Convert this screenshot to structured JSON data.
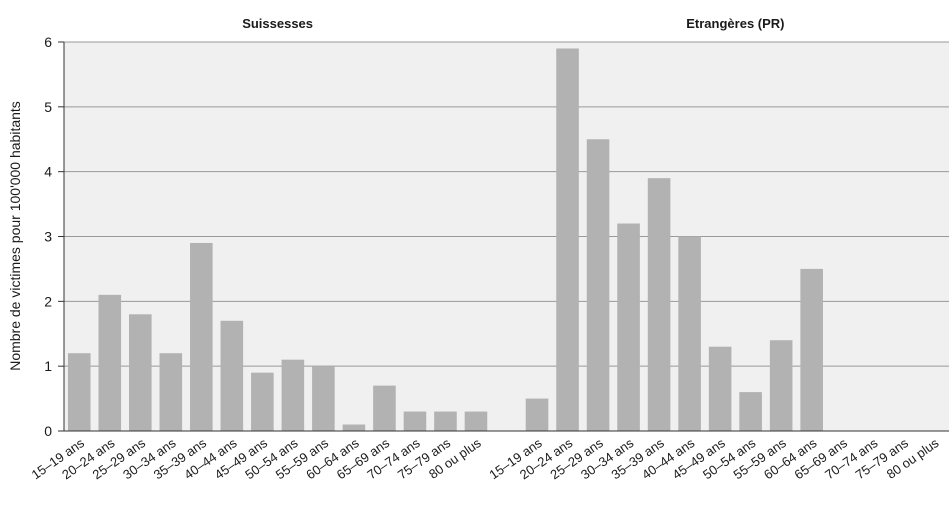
{
  "chart_data": {
    "type": "bar",
    "ylabel": "Nombre de victimes pour 100'000 habitants",
    "ylim": [
      0,
      6
    ],
    "yticks": [
      0,
      1,
      2,
      3,
      4,
      5,
      6
    ],
    "grid": true,
    "bar_color": "#b2b2b2",
    "panel_background": "#f0f0f0",
    "grid_color": "#999999",
    "categories": [
      "15–19 ans",
      "20–24 ans",
      "25–29 ans",
      "30–34 ans",
      "35–39 ans",
      "40–44 ans",
      "45–49 ans",
      "50–54 ans",
      "55–59 ans",
      "60–64 ans",
      "65–69 ans",
      "70–74 ans",
      "75–79 ans",
      "80 ou plus"
    ],
    "groups": [
      {
        "title": "Suissesses",
        "values": [
          1.2,
          2.1,
          1.8,
          1.2,
          2.9,
          1.7,
          0.9,
          1.1,
          1.0,
          0.1,
          0.7,
          0.3,
          0.3,
          0.3
        ]
      },
      {
        "title": "Etrangères (PR)",
        "values": [
          0.5,
          5.9,
          4.5,
          3.2,
          3.9,
          3.0,
          1.3,
          0.6,
          1.4,
          2.5,
          0,
          0,
          0,
          0
        ]
      }
    ]
  }
}
